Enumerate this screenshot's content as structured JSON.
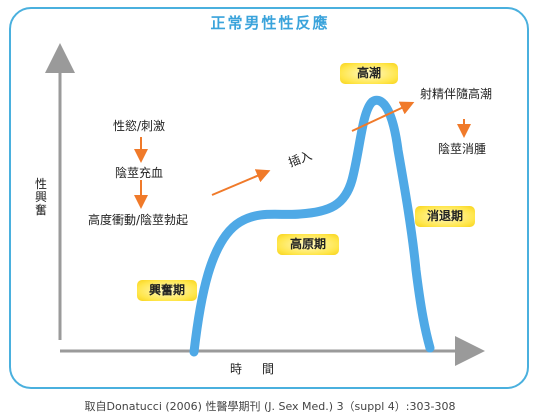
{
  "title": "正常男性性反應",
  "y_axis_label": "性興奮",
  "x_axis_label": "時間",
  "phases": {
    "excitement": "興奮期",
    "plateau": "高原期",
    "orgasm": "高潮",
    "resolution": "消退期"
  },
  "annotations": {
    "desire": "性慾/刺激",
    "congestion": "陰莖充血",
    "erection": "高度衝動/陰莖勃起",
    "insertion": "插入",
    "ejaculation": "射精伴隨高潮",
    "detumescence": "陰莖消腫"
  },
  "source": "取自Donatucci (2006) 性醫學期刊 (J. Sex Med.) 3（suppl 4）:303-308",
  "colors": {
    "curve": "#4fa9e6",
    "arrow": "#f07a2a",
    "frame": "#4ab0de",
    "title": "#3aa3db"
  }
}
